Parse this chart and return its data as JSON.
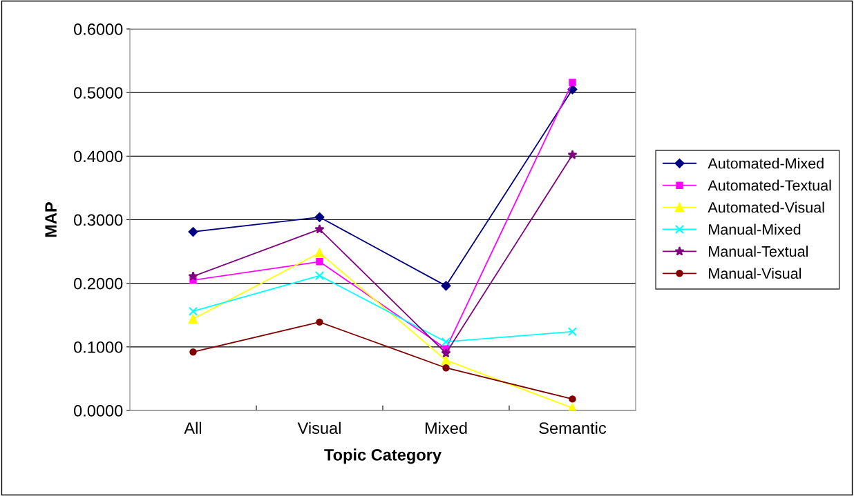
{
  "chart_data": {
    "type": "line",
    "xlabel": "Topic Category",
    "ylabel": "MAP",
    "categories": [
      "All",
      "Visual",
      "Mixed",
      "Semantic"
    ],
    "ylim": [
      0,
      0.6
    ],
    "yticks": [
      {
        "value": 0,
        "label": "0.0000"
      },
      {
        "value": 0.1,
        "label": "0.1000"
      },
      {
        "value": 0.2,
        "label": "0.2000"
      },
      {
        "value": 0.3,
        "label": "0.3000"
      },
      {
        "value": 0.4,
        "label": "0.4000"
      },
      {
        "value": 0.5,
        "label": "0.5000"
      },
      {
        "value": 0.6,
        "label": "0.6000"
      }
    ],
    "grid": "y",
    "legend": "right",
    "line_style": "solid",
    "series": [
      {
        "name": "Automated-Mixed",
        "color": "#000080",
        "marker": "diamond",
        "values": [
          0.281,
          0.304,
          0.196,
          0.505
        ]
      },
      {
        "name": "Automated-Textual",
        "color": "#ff00ff",
        "marker": "square",
        "values": [
          0.205,
          0.234,
          0.097,
          0.516
        ]
      },
      {
        "name": "Automated-Visual",
        "color": "#ffff00",
        "marker": "triangle",
        "values": [
          0.144,
          0.248,
          0.079,
          0.004
        ]
      },
      {
        "name": "Manual-Mixed",
        "color": "#00ffff",
        "marker": "cross",
        "values": [
          0.156,
          0.212,
          0.108,
          0.124
        ]
      },
      {
        "name": "Manual-Textual",
        "color": "#800080",
        "marker": "star",
        "values": [
          0.211,
          0.285,
          0.09,
          0.402
        ]
      },
      {
        "name": "Manual-Visual",
        "color": "#800000",
        "marker": "circle",
        "values": [
          0.092,
          0.139,
          0.067,
          0.018
        ]
      }
    ]
  }
}
